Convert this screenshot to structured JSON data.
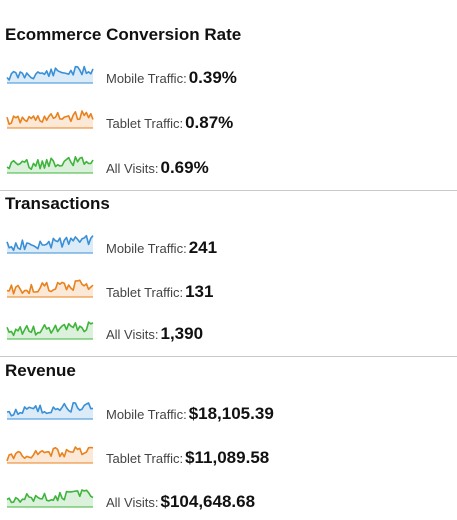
{
  "colors": {
    "mobile": "#3a8fd6",
    "tablet": "#e8821e",
    "all": "#3fb43c"
  },
  "sections": [
    {
      "title": "Ecommerce Conversion Rate",
      "rows": [
        {
          "label": "Mobile Traffic:",
          "value": "0.39%",
          "color_key": "mobile"
        },
        {
          "label": "Tablet Traffic:",
          "value": "0.87%",
          "color_key": "tablet"
        },
        {
          "label": "All Visits:",
          "value": "0.69%",
          "color_key": "all"
        }
      ]
    },
    {
      "title": "Transactions",
      "rows": [
        {
          "label": "Mobile Traffic:",
          "value": "241",
          "color_key": "mobile"
        },
        {
          "label": "Tablet Traffic:",
          "value": "131",
          "color_key": "tablet"
        },
        {
          "label": "All Visits:",
          "value": "1,390",
          "color_key": "all"
        }
      ]
    },
    {
      "title": "Revenue",
      "rows": [
        {
          "label": "Mobile Traffic:",
          "value": "$18,105.39",
          "color_key": "mobile"
        },
        {
          "label": "Tablet Traffic:",
          "value": "$11,089.58",
          "color_key": "tablet"
        },
        {
          "label": "All Visits:",
          "value": "$104,648.68",
          "color_key": "all"
        }
      ]
    }
  ]
}
